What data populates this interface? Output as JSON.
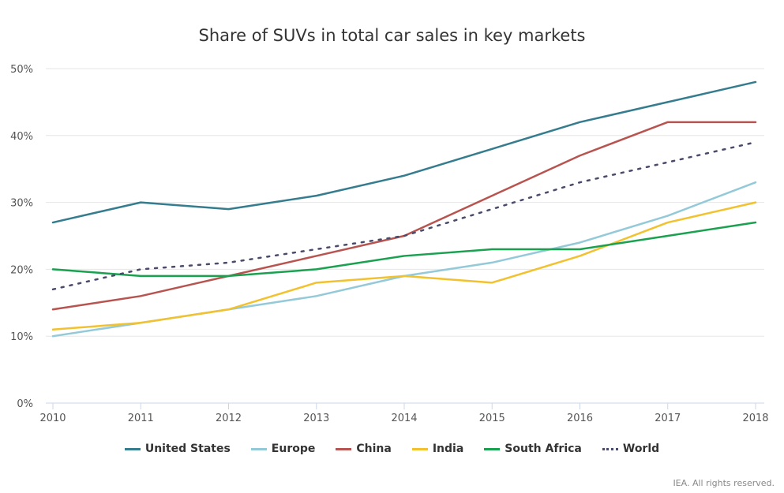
{
  "chart_data": {
    "type": "line",
    "title": "Share of SUVs in total car sales in key markets",
    "xlabel": "",
    "ylabel": "",
    "x": [
      "2010",
      "2011",
      "2012",
      "2013",
      "2014",
      "2015",
      "2016",
      "2017",
      "2018"
    ],
    "ylim": [
      0,
      50
    ],
    "yticks": [
      "0%",
      "10%",
      "20%",
      "30%",
      "40%",
      "50%"
    ],
    "ytick_values": [
      0,
      10,
      20,
      30,
      40,
      50
    ],
    "grid": true,
    "legend_position": "bottom",
    "series": [
      {
        "name": "United States",
        "color": "#347c8e",
        "style": "solid",
        "values": [
          27,
          30,
          29,
          31,
          34,
          38,
          42,
          45,
          48
        ]
      },
      {
        "name": "Europe",
        "color": "#93c9d8",
        "style": "solid",
        "values": [
          10,
          12,
          14,
          16,
          19,
          21,
          24,
          28,
          33
        ]
      },
      {
        "name": "China",
        "color": "#b85450",
        "style": "solid",
        "values": [
          14,
          16,
          19,
          22,
          25,
          31,
          37,
          42,
          42
        ]
      },
      {
        "name": "India",
        "color": "#f2c12e",
        "style": "solid",
        "values": [
          11,
          12,
          14,
          18,
          19,
          18,
          22,
          27,
          30
        ]
      },
      {
        "name": "South Africa",
        "color": "#1aa150",
        "style": "solid",
        "values": [
          20,
          19,
          19,
          20,
          22,
          23,
          23,
          25,
          27
        ]
      },
      {
        "name": "World",
        "color": "#4a4a6a",
        "style": "dotted",
        "values": [
          17,
          20,
          21,
          23,
          25,
          29,
          33,
          36,
          39
        ]
      }
    ]
  },
  "credit": "IEA. All rights reserved."
}
